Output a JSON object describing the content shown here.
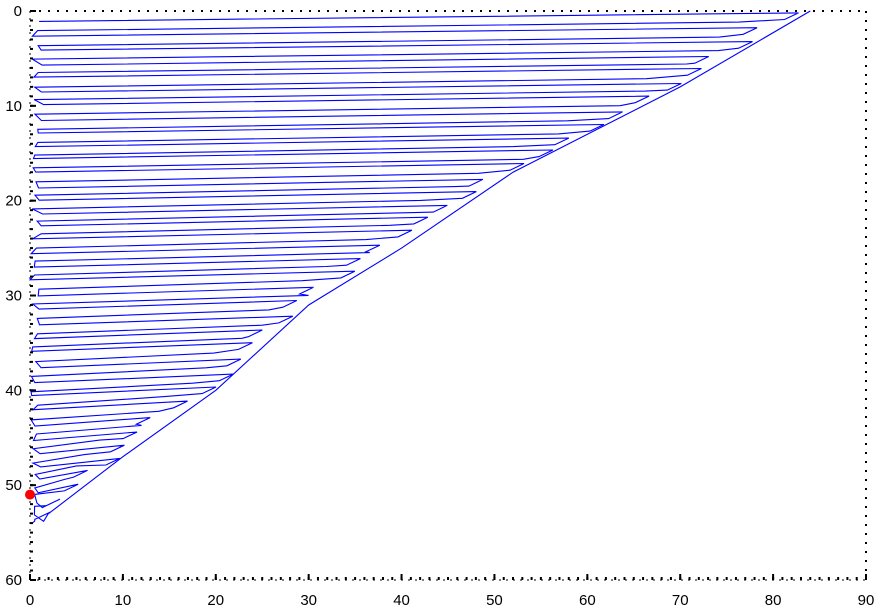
{
  "chart_data": {
    "type": "line",
    "title": "",
    "xlabel": "",
    "ylabel": "",
    "xlim": [
      0,
      90
    ],
    "ylim": [
      60,
      0
    ],
    "y_inverted": true,
    "grid": false,
    "legend": "none",
    "x_ticks": [
      "0",
      "10",
      "20",
      "30",
      "40",
      "50",
      "60",
      "70",
      "80",
      "90"
    ],
    "y_ticks": [
      "0",
      "10",
      "20",
      "30",
      "40",
      "50",
      "60"
    ],
    "colors": {
      "path": "#0000ff",
      "marker": "#ff0000",
      "axis": "#000000"
    },
    "series": [
      {
        "kind": "zigzag-walk",
        "note_data": "path zigzags between left edge and boundary line, descending",
        "boundary": [
          [
            84,
            0
          ],
          [
            70,
            8
          ],
          [
            52,
            17
          ],
          [
            40,
            25
          ],
          [
            30,
            31
          ],
          [
            20,
            40
          ],
          [
            10,
            47
          ],
          [
            2,
            53
          ]
        ],
        "left_edge_x": 0,
        "y_start": 0,
        "y_end": 54
      }
    ],
    "marker": {
      "x": 0,
      "y": 51
    }
  }
}
